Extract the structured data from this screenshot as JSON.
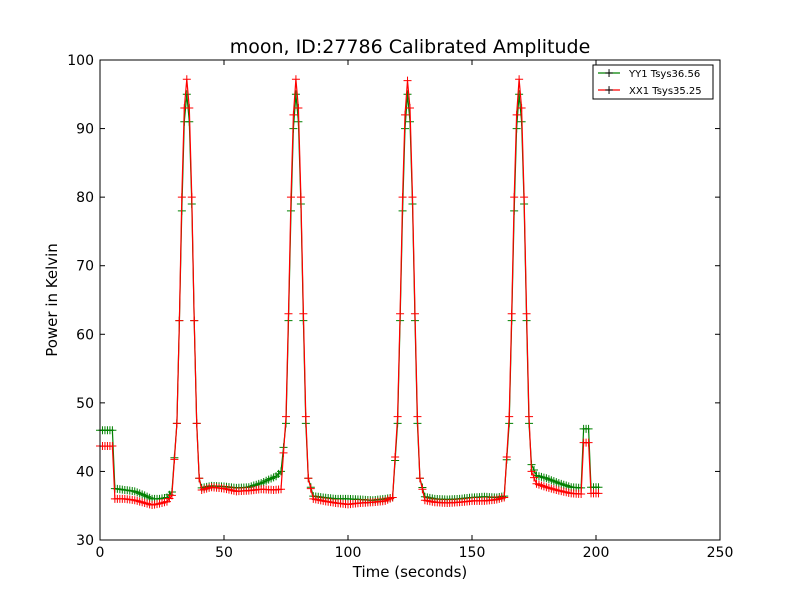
{
  "chart_data": {
    "type": "line",
    "title": "moon, ID:27786 Calibrated Amplitude",
    "xlabel": "Time (seconds)",
    "ylabel": "Power in Kelvin",
    "xlim": [
      0,
      250
    ],
    "ylim": [
      30,
      100
    ],
    "xticks": [
      0,
      50,
      100,
      150,
      200,
      250
    ],
    "yticks": [
      30,
      40,
      50,
      60,
      70,
      80,
      90,
      100
    ],
    "grid": false,
    "legend_position": "top-right",
    "marker": "+",
    "sample_interval": 1,
    "series": [
      {
        "name": "YY1 Tsys36.56",
        "color": "#008000",
        "points": [
          [
            0,
            46
          ],
          [
            5,
            46
          ],
          [
            6,
            37.5
          ],
          [
            10,
            37.3
          ],
          [
            14,
            37.1
          ],
          [
            18,
            36.5
          ],
          [
            21,
            36
          ],
          [
            24,
            36
          ],
          [
            27,
            36.2
          ],
          [
            29,
            37
          ],
          [
            31,
            47
          ],
          [
            32,
            62
          ],
          [
            33,
            78
          ],
          [
            34,
            91
          ],
          [
            35,
            95
          ],
          [
            36,
            91
          ],
          [
            37,
            79
          ],
          [
            38,
            62
          ],
          [
            39,
            47
          ],
          [
            40,
            39
          ],
          [
            41,
            37.6
          ],
          [
            45,
            37.9
          ],
          [
            50,
            37.8
          ],
          [
            55,
            37.6
          ],
          [
            60,
            37.7
          ],
          [
            65,
            38.3
          ],
          [
            68,
            38.8
          ],
          [
            71,
            39.3
          ],
          [
            73,
            40
          ],
          [
            75,
            47
          ],
          [
            76,
            62
          ],
          [
            77,
            78
          ],
          [
            78,
            90
          ],
          [
            79,
            95
          ],
          [
            80,
            91
          ],
          [
            81,
            79
          ],
          [
            82,
            62
          ],
          [
            83,
            47
          ],
          [
            84,
            39
          ],
          [
            86,
            36.4
          ],
          [
            90,
            36.2
          ],
          [
            95,
            36
          ],
          [
            100,
            36
          ],
          [
            105,
            35.9
          ],
          [
            110,
            35.8
          ],
          [
            115,
            36
          ],
          [
            118,
            36.2
          ],
          [
            120,
            47
          ],
          [
            121,
            62
          ],
          [
            122,
            78
          ],
          [
            123,
            90
          ],
          [
            124,
            95
          ],
          [
            125,
            91
          ],
          [
            126,
            79
          ],
          [
            127,
            62
          ],
          [
            128,
            47
          ],
          [
            129,
            39
          ],
          [
            131,
            36.3
          ],
          [
            135,
            36
          ],
          [
            140,
            35.9
          ],
          [
            145,
            36
          ],
          [
            150,
            36.2
          ],
          [
            155,
            36.3
          ],
          [
            160,
            36.2
          ],
          [
            163,
            36.4
          ],
          [
            165,
            47
          ],
          [
            166,
            62
          ],
          [
            167,
            78
          ],
          [
            168,
            90
          ],
          [
            169,
            95
          ],
          [
            170,
            91
          ],
          [
            171,
            79
          ],
          [
            172,
            62
          ],
          [
            173,
            47
          ],
          [
            174,
            41
          ],
          [
            176,
            39.4
          ],
          [
            180,
            39
          ],
          [
            185,
            38.3
          ],
          [
            190,
            37.7
          ],
          [
            194,
            37.6
          ],
          [
            195,
            46.2
          ],
          [
            197,
            46.2
          ],
          [
            198,
            37.7
          ],
          [
            201,
            37.7
          ]
        ]
      },
      {
        "name": "XX1 Tsys35.25",
        "color": "#ff0000",
        "points": [
          [
            0,
            43.7
          ],
          [
            5,
            43.7
          ],
          [
            6,
            36
          ],
          [
            10,
            36
          ],
          [
            14,
            35.8
          ],
          [
            18,
            35.4
          ],
          [
            21,
            35.1
          ],
          [
            24,
            35.3
          ],
          [
            27,
            35.6
          ],
          [
            29,
            36.5
          ],
          [
            31,
            47
          ],
          [
            32,
            62
          ],
          [
            33,
            80
          ],
          [
            34,
            93
          ],
          [
            35,
            97.2
          ],
          [
            36,
            93
          ],
          [
            37,
            80
          ],
          [
            38,
            62
          ],
          [
            39,
            47
          ],
          [
            40,
            39
          ],
          [
            41,
            37.3
          ],
          [
            45,
            37.7
          ],
          [
            50,
            37.5
          ],
          [
            55,
            37.1
          ],
          [
            60,
            37.2
          ],
          [
            65,
            37.4
          ],
          [
            70,
            37.3
          ],
          [
            73,
            37.4
          ],
          [
            75,
            48
          ],
          [
            76,
            63
          ],
          [
            77,
            80
          ],
          [
            78,
            92
          ],
          [
            79,
            97.2
          ],
          [
            80,
            93
          ],
          [
            81,
            80
          ],
          [
            82,
            63
          ],
          [
            83,
            48
          ],
          [
            84,
            39
          ],
          [
            86,
            36
          ],
          [
            90,
            35.7
          ],
          [
            95,
            35.4
          ],
          [
            100,
            35.2
          ],
          [
            105,
            35.4
          ],
          [
            110,
            35.5
          ],
          [
            115,
            35.7
          ],
          [
            118,
            36.2
          ],
          [
            120,
            48
          ],
          [
            121,
            63
          ],
          [
            122,
            80
          ],
          [
            123,
            92
          ],
          [
            124,
            97
          ],
          [
            125,
            93
          ],
          [
            126,
            80
          ],
          [
            127,
            63
          ],
          [
            128,
            48
          ],
          [
            129,
            39
          ],
          [
            131,
            35.8
          ],
          [
            135,
            35.5
          ],
          [
            140,
            35.4
          ],
          [
            145,
            35.5
          ],
          [
            150,
            35.7
          ],
          [
            155,
            35.7
          ],
          [
            160,
            35.9
          ],
          [
            163,
            36.2
          ],
          [
            165,
            48
          ],
          [
            166,
            63
          ],
          [
            167,
            80
          ],
          [
            168,
            92
          ],
          [
            169,
            97.2
          ],
          [
            170,
            93
          ],
          [
            171,
            80
          ],
          [
            172,
            63
          ],
          [
            173,
            48
          ],
          [
            174,
            40
          ],
          [
            176,
            38.2
          ],
          [
            180,
            37.7
          ],
          [
            185,
            37.2
          ],
          [
            190,
            36.8
          ],
          [
            194,
            36.7
          ],
          [
            195,
            44.2
          ],
          [
            197,
            44.2
          ],
          [
            198,
            36.8
          ],
          [
            201,
            36.8
          ]
        ]
      }
    ]
  }
}
